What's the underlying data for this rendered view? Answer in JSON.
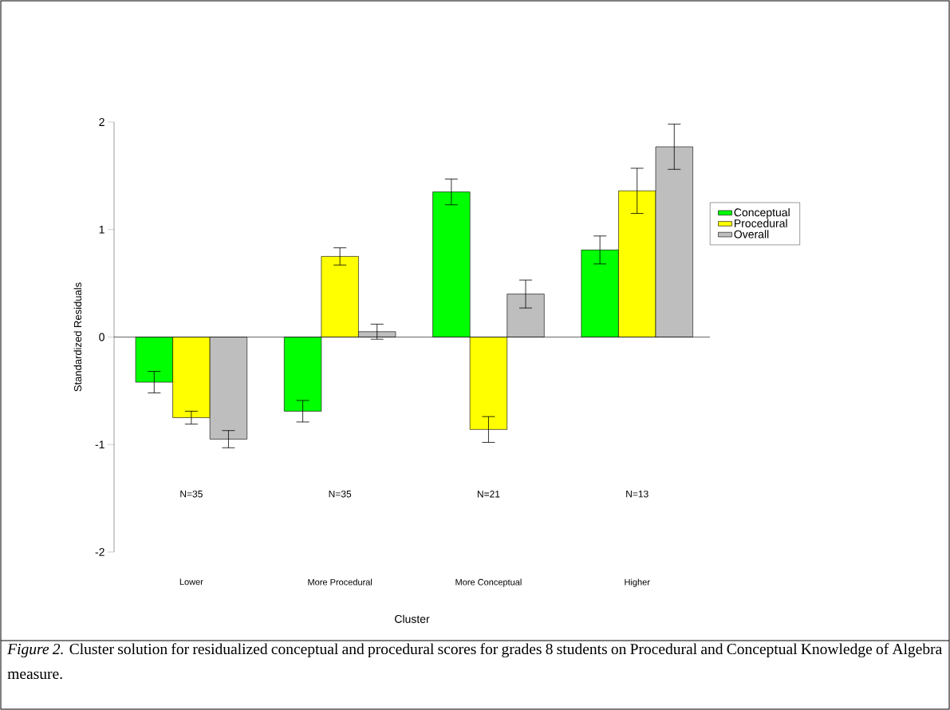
{
  "chart_data": {
    "type": "bar",
    "xlabel": "Cluster",
    "ylabel": "Standardized Residuals",
    "categories": [
      "Lower",
      "More Procedural",
      "More Conceptual",
      "Higher"
    ],
    "series": [
      {
        "name": "Conceptual",
        "color": "#00ff00",
        "values": [
          -0.42,
          -0.69,
          1.35,
          0.81
        ],
        "errors": [
          0.1,
          0.1,
          0.12,
          0.13
        ]
      },
      {
        "name": "Procedural",
        "color": "#ffff00",
        "values": [
          -0.75,
          0.75,
          -0.86,
          1.36
        ],
        "errors": [
          0.06,
          0.08,
          0.12,
          0.21
        ]
      },
      {
        "name": "Overall",
        "color": "#bebebe",
        "values": [
          -0.95,
          0.05,
          0.4,
          1.77
        ],
        "errors": [
          0.08,
          0.07,
          0.13,
          0.21
        ]
      }
    ],
    "ylim": [
      -2,
      2
    ],
    "yticks": [
      -2,
      -1,
      0,
      1,
      2
    ],
    "ref_lines": [
      {
        "axis": "y",
        "value": 0
      }
    ],
    "legend": "right",
    "annotations": [
      "N=35",
      "N=35",
      "N=21",
      "N=13",
      "*Figure 2.* Cluster solution for residualized conceptual and procedural scores for grades 8 students on Procedural and Conceptual Knowledge of Algebra measure."
    ]
  }
}
